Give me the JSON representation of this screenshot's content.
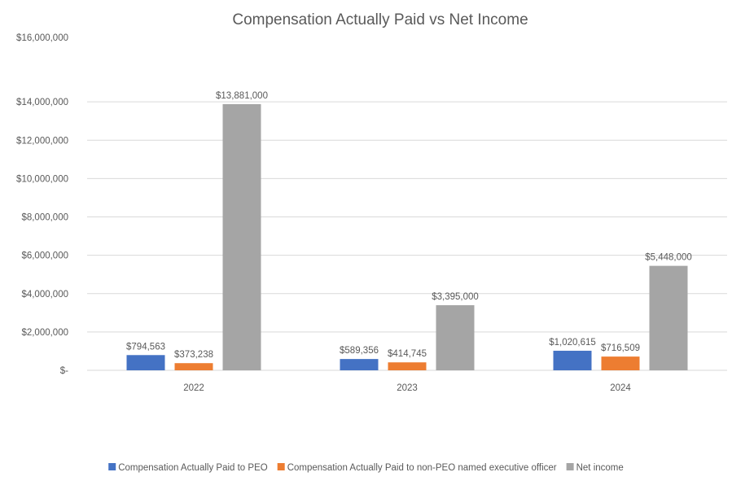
{
  "chart_data": {
    "type": "bar",
    "title": "Compensation Actually Paid vs Net Income",
    "categories": [
      "2022",
      "2023",
      "2024"
    ],
    "series": [
      {
        "name": "Compensation Actually Paid to PEO",
        "color": "#4472C4",
        "values": [
          794563,
          589356,
          1020615
        ],
        "labels": [
          "$794,563",
          "$589,356",
          "$1,020,615"
        ]
      },
      {
        "name": "Compensation Actually Paid to non-PEO named executive officer",
        "color": "#ED7D31",
        "values": [
          373238,
          414745,
          716509
        ],
        "labels": [
          "$373,238",
          "$414,745",
          "$716,509"
        ]
      },
      {
        "name": "Net income",
        "color": "#A5A5A5",
        "values": [
          13881000,
          3395000,
          5448000
        ],
        "labels": [
          "$13,881,000",
          "$3,395,000",
          "$5,448,000"
        ]
      }
    ],
    "ylim": [
      0,
      16000000
    ],
    "yticks": [
      0,
      2000000,
      4000000,
      6000000,
      8000000,
      10000000,
      12000000,
      14000000,
      16000000
    ],
    "ytick_labels": [
      "$-",
      "$2,000,000",
      "$4,000,000",
      "$6,000,000",
      "$8,000,000",
      "$10,000,000",
      "$12,000,000",
      "$14,000,000",
      "$16,000,000"
    ],
    "xlabel": "",
    "ylabel": "",
    "grid": true,
    "legend_position": "bottom",
    "colors": {
      "gridline": "#D9D9D9",
      "text": "#595959",
      "title": "#595959"
    }
  }
}
